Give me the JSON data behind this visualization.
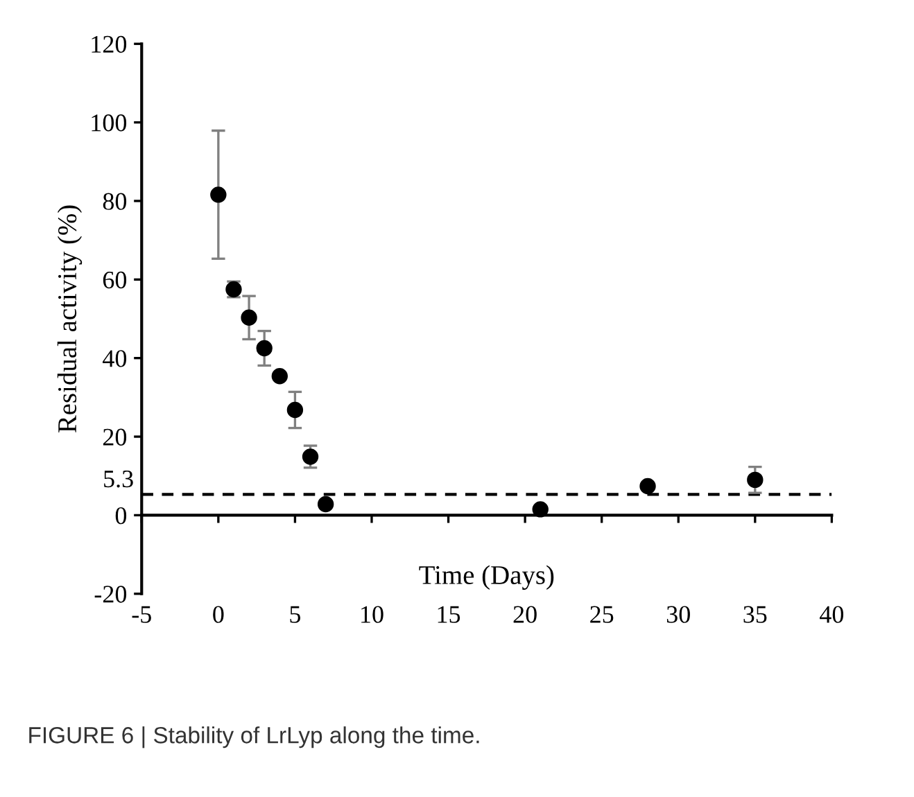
{
  "chart_data": {
    "type": "scatter",
    "xlabel": "Time (Days)",
    "ylabel": "Residual activity (%)",
    "x": [
      0,
      1,
      2,
      3,
      4,
      5,
      6,
      7,
      21,
      28,
      35
    ],
    "values": [
      81.6,
      57.5,
      50.3,
      42.5,
      35.4,
      26.8,
      14.9,
      2.8,
      1.5,
      7.4,
      9.0
    ],
    "errors": [
      16.3,
      2,
      5.5,
      4.4,
      null,
      4.6,
      2.8,
      null,
      null,
      null,
      3.3
    ],
    "color": "#000000",
    "marker": "circle",
    "xlim": [
      -5,
      40
    ],
    "xticks": [
      -5,
      0,
      5,
      10,
      15,
      20,
      25,
      30,
      35,
      40
    ],
    "ylim": [
      -20,
      120
    ],
    "yticks": [
      -20,
      0,
      20,
      40,
      60,
      80,
      100,
      120
    ],
    "ref_lines": [
      {
        "axis": "y",
        "value": 5.3,
        "label": "5.3",
        "color": "#000000",
        "line_style": "dashed"
      }
    ],
    "legend": false,
    "annotations": [
      "FIGURE 6 | Stability of LrLyp along the time."
    ]
  }
}
